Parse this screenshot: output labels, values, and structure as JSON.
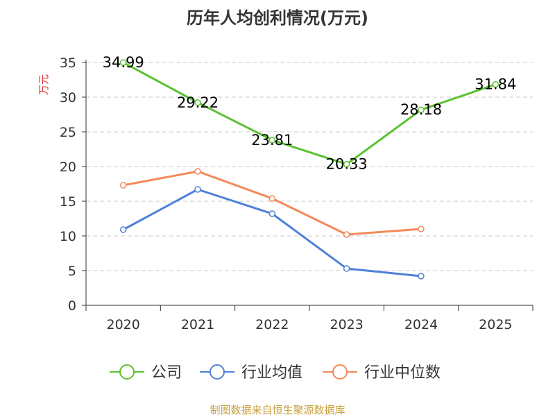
{
  "chart_data": {
    "type": "line",
    "title": "历年人均创利情况(万元)",
    "ylabel": "万元",
    "xlabel": "",
    "categories": [
      "2020",
      "2021",
      "2022",
      "2023",
      "2024",
      "2025"
    ],
    "ylim": [
      0,
      35
    ],
    "yticks": [
      0,
      5,
      10,
      15,
      20,
      25,
      30,
      35
    ],
    "grid": true,
    "legend_position": "bottom",
    "series": [
      {
        "name": "公司",
        "color": "#5bc22f",
        "values": [
          34.99,
          29.22,
          23.81,
          20.33,
          28.18,
          31.84
        ],
        "labels": [
          "34.99",
          "29.22",
          "23.81",
          "20.33",
          "28.18",
          "31.84"
        ]
      },
      {
        "name": "行业均值",
        "color": "#4f81d9",
        "values": [
          10.9,
          16.7,
          13.2,
          5.3,
          4.2,
          null
        ]
      },
      {
        "name": "行业中位数",
        "color": "#f5895a",
        "values": [
          17.3,
          19.3,
          15.4,
          10.2,
          11.0,
          null
        ]
      }
    ],
    "source": "制图数据来自恒生聚源数据库",
    "source_color": "#c8a03c",
    "ylabel_color": "#e03030"
  }
}
